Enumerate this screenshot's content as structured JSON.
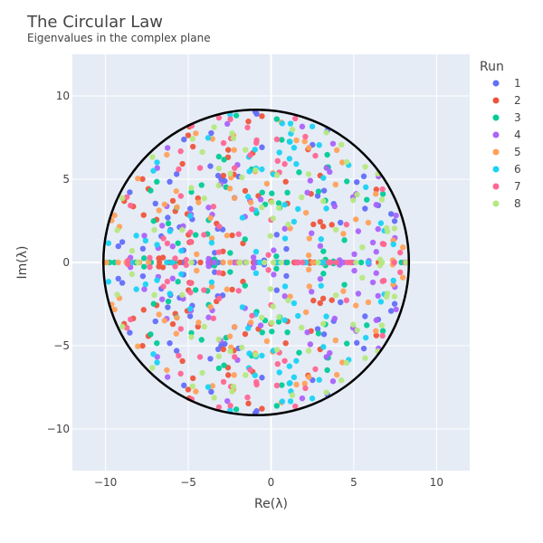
{
  "chart_data": {
    "type": "scatter",
    "title": "The Circular Law",
    "subtitle": "Eigenvalues in the complex plane",
    "xlabel": "Re(λ)",
    "ylabel": "Im(λ)",
    "xlim": [
      -12,
      12
    ],
    "ylim": [
      -12.5,
      12.5
    ],
    "xticks": [
      -10,
      -5,
      0,
      5,
      10
    ],
    "yticks": [
      -10,
      -5,
      0,
      5,
      10
    ],
    "tick_labels": {
      "x": [
        "−10",
        "−5",
        "0",
        "5",
        "10"
      ],
      "y": [
        "−10",
        "−5",
        "0",
        "5",
        "10"
      ]
    },
    "grid": true,
    "legend": {
      "title": "Run",
      "placement": "right"
    },
    "circle": {
      "center": [
        -0.9,
        0
      ],
      "radius": 9.2,
      "color": "#000000"
    },
    "point_generation": {
      "points_per_run": 100,
      "real_axis_points_per_run": 12,
      "conjugate_symmetric": true
    },
    "series": [
      {
        "name": "1",
        "color": "#636efa"
      },
      {
        "name": "2",
        "color": "#ef553b"
      },
      {
        "name": "3",
        "color": "#00cc96"
      },
      {
        "name": "4",
        "color": "#ab63fa"
      },
      {
        "name": "5",
        "color": "#ffa15a"
      },
      {
        "name": "6",
        "color": "#19d3f3"
      },
      {
        "name": "7",
        "color": "#ff6692"
      },
      {
        "name": "8",
        "color": "#b6e880"
      }
    ]
  }
}
